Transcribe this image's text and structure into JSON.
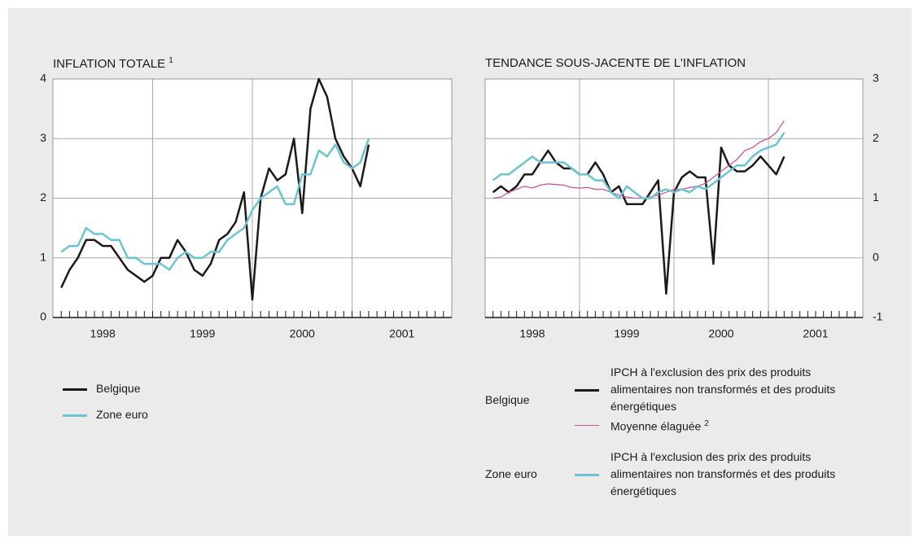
{
  "chart_data": [
    {
      "type": "line",
      "title": "INFLATION TOTALE",
      "title_note": "1",
      "categories": [
        "1998",
        "1999",
        "2000",
        "2001"
      ],
      "x": [
        1998.083,
        1998.167,
        1998.25,
        1998.333,
        1998.417,
        1998.5,
        1998.583,
        1998.667,
        1998.75,
        1998.833,
        1998.917,
        1999,
        1999.083,
        1999.167,
        1999.25,
        1999.333,
        1999.417,
        1999.5,
        1999.583,
        1999.667,
        1999.75,
        1999.833,
        1999.917,
        2000,
        2000.083,
        2000.167,
        2000.25,
        2000.333,
        2000.417,
        2000.5,
        2000.583,
        2000.667,
        2000.75,
        2000.833,
        2000.917,
        2001,
        2001.083,
        2001.167
      ],
      "xlim": [
        1998,
        2002
      ],
      "ylim": [
        0,
        4
      ],
      "yticks": [
        0,
        1,
        2,
        3,
        4
      ],
      "y_axis_side": "left",
      "grid": true,
      "series": [
        {
          "name": "Belgique",
          "color": "#1a1a1a",
          "values": [
            0.5,
            0.8,
            1.0,
            1.3,
            1.3,
            1.2,
            1.2,
            1.0,
            0.8,
            0.7,
            0.6,
            0.7,
            1.0,
            1.0,
            1.3,
            1.1,
            0.8,
            0.7,
            0.9,
            1.3,
            1.4,
            1.6,
            2.1,
            0.3,
            2.0,
            2.5,
            2.3,
            2.4,
            3.0,
            1.75,
            3.5,
            4.0,
            3.7,
            3.0,
            2.7,
            2.5,
            2.2,
            2.9
          ]
        },
        {
          "name": "Zone euro",
          "color": "#6cc4d3",
          "values": [
            1.1,
            1.2,
            1.2,
            1.5,
            1.4,
            1.4,
            1.3,
            1.3,
            1.0,
            1.0,
            0.9,
            0.9,
            0.9,
            0.8,
            1.0,
            1.1,
            1.0,
            1.0,
            1.1,
            1.1,
            1.3,
            1.4,
            1.5,
            1.8,
            2.0,
            2.1,
            2.2,
            1.9,
            1.9,
            2.4,
            2.4,
            2.8,
            2.7,
            2.9,
            2.6,
            2.5,
            2.6,
            3.0
          ]
        }
      ]
    },
    {
      "type": "line",
      "title": "TENDANCE SOUS-JACENTE DE L'INFLATION",
      "categories": [
        "1998",
        "1999",
        "2000",
        "2001"
      ],
      "x": [
        1998.083,
        1998.167,
        1998.25,
        1998.333,
        1998.417,
        1998.5,
        1998.583,
        1998.667,
        1998.75,
        1998.833,
        1998.917,
        1999,
        1999.083,
        1999.167,
        1999.25,
        1999.333,
        1999.417,
        1999.5,
        1999.583,
        1999.667,
        1999.75,
        1999.833,
        1999.917,
        2000,
        2000.083,
        2000.167,
        2000.25,
        2000.333,
        2000.417,
        2000.5,
        2000.583,
        2000.667,
        2000.75,
        2000.833,
        2000.917,
        2001,
        2001.083,
        2001.167
      ],
      "xlim": [
        1998,
        2002
      ],
      "ylim": [
        -1,
        3
      ],
      "yticks": [
        -1,
        0,
        1,
        2,
        3
      ],
      "y_axis_side": "right",
      "grid": true,
      "series": [
        {
          "name": "IPCH à l'exclusion des prix des produits alimentaires non transformés et des produits énergétiques",
          "group": "Belgique",
          "color": "#1a1a1a",
          "values": [
            1.1,
            1.2,
            1.1,
            1.2,
            1.4,
            1.4,
            1.6,
            1.8,
            1.6,
            1.5,
            1.5,
            1.4,
            1.4,
            1.6,
            1.4,
            1.1,
            1.2,
            0.9,
            0.9,
            0.9,
            1.1,
            1.3,
            -0.6,
            1.1,
            1.35,
            1.45,
            1.35,
            1.35,
            -0.1,
            1.85,
            1.55,
            1.45,
            1.45,
            1.55,
            1.7,
            1.55,
            1.4,
            1.7
          ]
        },
        {
          "name": "Moyenne élaguée",
          "name_note": "2",
          "group": "Belgique",
          "color": "#c6579a",
          "values": [
            1.0,
            1.02,
            1.1,
            1.15,
            1.2,
            1.17,
            1.22,
            1.24,
            1.23,
            1.22,
            1.18,
            1.17,
            1.18,
            1.15,
            1.15,
            1.1,
            1.05,
            1.02,
            1.0,
            1.0,
            1.02,
            1.05,
            1.1,
            1.15,
            1.15,
            1.18,
            1.2,
            1.25,
            1.35,
            1.45,
            1.55,
            1.65,
            1.8,
            1.85,
            1.95,
            2.0,
            2.1,
            2.3
          ]
        },
        {
          "name": "IPCH à l'exclusion des prix des produits alimentaires non transformés et des produits énergétiques",
          "group": "Zone euro",
          "color": "#6cc4d3",
          "values": [
            1.3,
            1.4,
            1.4,
            1.5,
            1.6,
            1.7,
            1.6,
            1.6,
            1.6,
            1.6,
            1.5,
            1.4,
            1.4,
            1.3,
            1.3,
            1.1,
            1.0,
            1.2,
            1.1,
            1.0,
            1.0,
            1.1,
            1.15,
            1.1,
            1.15,
            1.1,
            1.2,
            1.15,
            1.25,
            1.35,
            1.45,
            1.55,
            1.55,
            1.7,
            1.8,
            1.85,
            1.9,
            2.1
          ]
        }
      ]
    }
  ]
}
